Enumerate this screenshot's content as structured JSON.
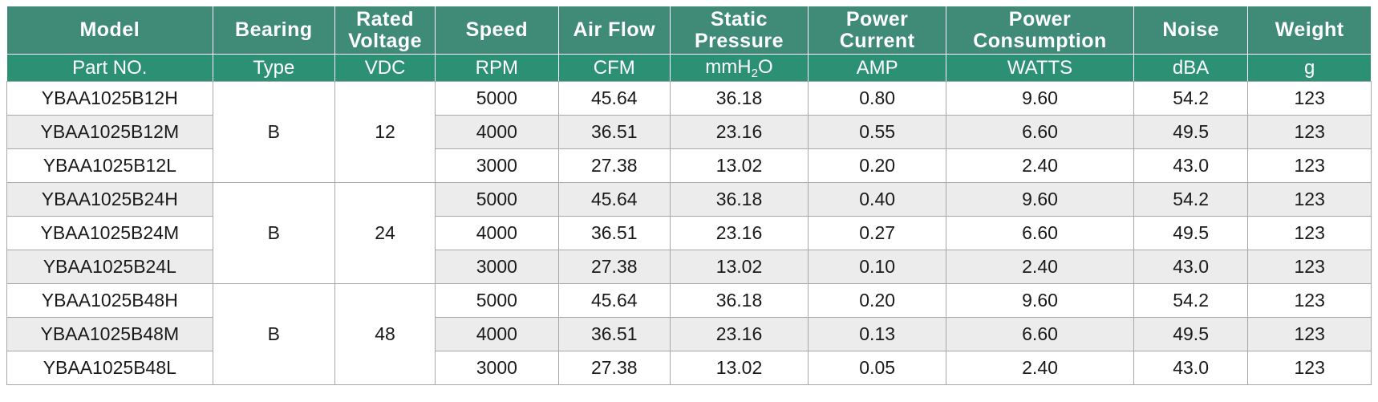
{
  "headers": {
    "model": "Model",
    "bearing": "Bearing",
    "rated_voltage_1": "Rated",
    "rated_voltage_2": "Voltage",
    "speed": "Speed",
    "air_flow": "Air Flow",
    "static_pressure_1": "Static",
    "static_pressure_2": "Pressure",
    "power_current_1": "Power",
    "power_current_2": "Current",
    "power_consumption_1": "Power",
    "power_consumption_2": "Consumption",
    "noise": "Noise",
    "weight": "Weight"
  },
  "units": {
    "part_no": "Part NO.",
    "type": "Type",
    "vdc": "VDC",
    "rpm": "RPM",
    "cfm": "CFM",
    "pressure_pre": "mmH",
    "pressure_sub": "2",
    "pressure_post": "O",
    "amp": "AMP",
    "watts": "WATTS",
    "dba": "dBA",
    "g": "g"
  },
  "groups": [
    {
      "bearing": "B",
      "voltage": "12",
      "rows": [
        {
          "model": "YBAA1025B12H",
          "speed": "5000",
          "airflow": "45.64",
          "pressure": "36.18",
          "current": "0.80",
          "power": "9.60",
          "noise": "54.2",
          "weight": "123"
        },
        {
          "model": "YBAA1025B12M",
          "speed": "4000",
          "airflow": "36.51",
          "pressure": "23.16",
          "current": "0.55",
          "power": "6.60",
          "noise": "49.5",
          "weight": "123"
        },
        {
          "model": "YBAA1025B12L",
          "speed": "3000",
          "airflow": "27.38",
          "pressure": "13.02",
          "current": "0.20",
          "power": "2.40",
          "noise": "43.0",
          "weight": "123"
        }
      ]
    },
    {
      "bearing": "B",
      "voltage": "24",
      "rows": [
        {
          "model": "YBAA1025B24H",
          "speed": "5000",
          "airflow": "45.64",
          "pressure": "36.18",
          "current": "0.40",
          "power": "9.60",
          "noise": "54.2",
          "weight": "123"
        },
        {
          "model": "YBAA1025B24M",
          "speed": "4000",
          "airflow": "36.51",
          "pressure": "23.16",
          "current": "0.27",
          "power": "6.60",
          "noise": "49.5",
          "weight": "123"
        },
        {
          "model": "YBAA1025B24L",
          "speed": "3000",
          "airflow": "27.38",
          "pressure": "13.02",
          "current": "0.10",
          "power": "2.40",
          "noise": "43.0",
          "weight": "123"
        }
      ]
    },
    {
      "bearing": "B",
      "voltage": "48",
      "rows": [
        {
          "model": "YBAA1025B48H",
          "speed": "5000",
          "airflow": "45.64",
          "pressure": "36.18",
          "current": "0.20",
          "power": "9.60",
          "noise": "54.2",
          "weight": "123"
        },
        {
          "model": "YBAA1025B48M",
          "speed": "4000",
          "airflow": "36.51",
          "pressure": "23.16",
          "current": "0.13",
          "power": "6.60",
          "noise": "49.5",
          "weight": "123"
        },
        {
          "model": "YBAA1025B48L",
          "speed": "3000",
          "airflow": "27.38",
          "pressure": "13.02",
          "current": "0.05",
          "power": "2.40",
          "noise": "43.0",
          "weight": "123"
        }
      ]
    }
  ],
  "colors": {
    "header_bg": "#3f8b78",
    "unit_bg": "#2c9174",
    "alt_row_bg": "#ececec",
    "grid": "#a8a8a8"
  }
}
